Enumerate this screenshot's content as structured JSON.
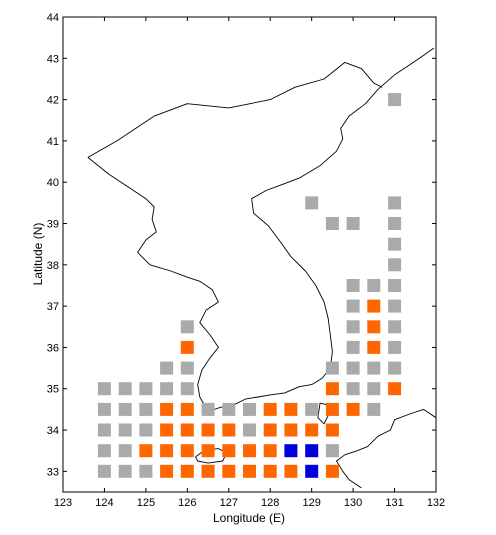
{
  "chart_data": {
    "type": "grid-map",
    "xlabel": "Longitude (E)",
    "ylabel": "Latitude (N)",
    "xlim": [
      123,
      132
    ],
    "ylim": [
      32.5,
      44
    ],
    "x_ticks": [
      "123",
      "124",
      "125",
      "126",
      "127",
      "128",
      "129",
      "130",
      "131",
      "132"
    ],
    "y_ticks": [
      "33",
      "34",
      "35",
      "36",
      "37",
      "38",
      "39",
      "40",
      "41",
      "42",
      "43",
      "44"
    ],
    "cell_size_deg": 0.5,
    "category_colors": {
      "gray": "#aaaaaa",
      "orange": "#ff6600",
      "blue": "#0000dd"
    },
    "cells": [
      {
        "lon": 131.0,
        "lat": 42.0,
        "cat": "gray"
      },
      {
        "lon": 129.0,
        "lat": 39.5,
        "cat": "gray"
      },
      {
        "lon": 131.0,
        "lat": 39.5,
        "cat": "gray"
      },
      {
        "lon": 129.5,
        "lat": 39.0,
        "cat": "gray"
      },
      {
        "lon": 130.0,
        "lat": 39.0,
        "cat": "gray"
      },
      {
        "lon": 131.0,
        "lat": 39.0,
        "cat": "gray"
      },
      {
        "lon": 131.0,
        "lat": 38.5,
        "cat": "gray"
      },
      {
        "lon": 131.0,
        "lat": 38.0,
        "cat": "gray"
      },
      {
        "lon": 130.0,
        "lat": 37.5,
        "cat": "gray"
      },
      {
        "lon": 130.5,
        "lat": 37.5,
        "cat": "gray"
      },
      {
        "lon": 131.0,
        "lat": 37.5,
        "cat": "gray"
      },
      {
        "lon": 130.0,
        "lat": 37.0,
        "cat": "gray"
      },
      {
        "lon": 130.5,
        "lat": 37.0,
        "cat": "orange"
      },
      {
        "lon": 131.0,
        "lat": 37.0,
        "cat": "gray"
      },
      {
        "lon": 126.0,
        "lat": 36.5,
        "cat": "gray"
      },
      {
        "lon": 130.0,
        "lat": 36.5,
        "cat": "gray"
      },
      {
        "lon": 130.5,
        "lat": 36.5,
        "cat": "orange"
      },
      {
        "lon": 131.0,
        "lat": 36.5,
        "cat": "gray"
      },
      {
        "lon": 126.0,
        "lat": 36.0,
        "cat": "orange"
      },
      {
        "lon": 130.0,
        "lat": 36.0,
        "cat": "gray"
      },
      {
        "lon": 130.5,
        "lat": 36.0,
        "cat": "orange"
      },
      {
        "lon": 131.0,
        "lat": 36.0,
        "cat": "gray"
      },
      {
        "lon": 125.5,
        "lat": 35.5,
        "cat": "gray"
      },
      {
        "lon": 126.0,
        "lat": 35.5,
        "cat": "gray"
      },
      {
        "lon": 129.5,
        "lat": 35.5,
        "cat": "gray"
      },
      {
        "lon": 130.0,
        "lat": 35.5,
        "cat": "gray"
      },
      {
        "lon": 130.5,
        "lat": 35.5,
        "cat": "gray"
      },
      {
        "lon": 131.0,
        "lat": 35.5,
        "cat": "gray"
      },
      {
        "lon": 124.0,
        "lat": 35.0,
        "cat": "gray"
      },
      {
        "lon": 124.5,
        "lat": 35.0,
        "cat": "gray"
      },
      {
        "lon": 125.0,
        "lat": 35.0,
        "cat": "gray"
      },
      {
        "lon": 125.5,
        "lat": 35.0,
        "cat": "gray"
      },
      {
        "lon": 126.0,
        "lat": 35.0,
        "cat": "gray"
      },
      {
        "lon": 129.5,
        "lat": 35.0,
        "cat": "orange"
      },
      {
        "lon": 130.0,
        "lat": 35.0,
        "cat": "gray"
      },
      {
        "lon": 130.5,
        "lat": 35.0,
        "cat": "gray"
      },
      {
        "lon": 131.0,
        "lat": 35.0,
        "cat": "orange"
      },
      {
        "lon": 124.0,
        "lat": 34.5,
        "cat": "gray"
      },
      {
        "lon": 124.5,
        "lat": 34.5,
        "cat": "gray"
      },
      {
        "lon": 125.0,
        "lat": 34.5,
        "cat": "gray"
      },
      {
        "lon": 125.5,
        "lat": 34.5,
        "cat": "orange"
      },
      {
        "lon": 126.0,
        "lat": 34.5,
        "cat": "orange"
      },
      {
        "lon": 126.5,
        "lat": 34.5,
        "cat": "gray"
      },
      {
        "lon": 127.0,
        "lat": 34.5,
        "cat": "gray"
      },
      {
        "lon": 127.5,
        "lat": 34.5,
        "cat": "gray"
      },
      {
        "lon": 128.0,
        "lat": 34.5,
        "cat": "orange"
      },
      {
        "lon": 128.5,
        "lat": 34.5,
        "cat": "orange"
      },
      {
        "lon": 129.0,
        "lat": 34.5,
        "cat": "gray"
      },
      {
        "lon": 129.5,
        "lat": 34.5,
        "cat": "orange"
      },
      {
        "lon": 130.0,
        "lat": 34.5,
        "cat": "orange"
      },
      {
        "lon": 130.5,
        "lat": 34.5,
        "cat": "gray"
      },
      {
        "lon": 124.0,
        "lat": 34.0,
        "cat": "gray"
      },
      {
        "lon": 124.5,
        "lat": 34.0,
        "cat": "gray"
      },
      {
        "lon": 125.0,
        "lat": 34.0,
        "cat": "gray"
      },
      {
        "lon": 125.5,
        "lat": 34.0,
        "cat": "orange"
      },
      {
        "lon": 126.0,
        "lat": 34.0,
        "cat": "orange"
      },
      {
        "lon": 126.5,
        "lat": 34.0,
        "cat": "orange"
      },
      {
        "lon": 127.0,
        "lat": 34.0,
        "cat": "orange"
      },
      {
        "lon": 127.5,
        "lat": 34.0,
        "cat": "gray"
      },
      {
        "lon": 128.0,
        "lat": 34.0,
        "cat": "orange"
      },
      {
        "lon": 128.5,
        "lat": 34.0,
        "cat": "orange"
      },
      {
        "lon": 129.0,
        "lat": 34.0,
        "cat": "orange"
      },
      {
        "lon": 129.5,
        "lat": 34.0,
        "cat": "orange"
      },
      {
        "lon": 124.0,
        "lat": 33.5,
        "cat": "gray"
      },
      {
        "lon": 124.5,
        "lat": 33.5,
        "cat": "gray"
      },
      {
        "lon": 125.0,
        "lat": 33.5,
        "cat": "orange"
      },
      {
        "lon": 125.5,
        "lat": 33.5,
        "cat": "orange"
      },
      {
        "lon": 126.0,
        "lat": 33.5,
        "cat": "orange"
      },
      {
        "lon": 126.5,
        "lat": 33.5,
        "cat": "orange"
      },
      {
        "lon": 127.0,
        "lat": 33.5,
        "cat": "orange"
      },
      {
        "lon": 127.5,
        "lat": 33.5,
        "cat": "orange"
      },
      {
        "lon": 128.0,
        "lat": 33.5,
        "cat": "orange"
      },
      {
        "lon": 128.5,
        "lat": 33.5,
        "cat": "blue"
      },
      {
        "lon": 129.0,
        "lat": 33.5,
        "cat": "blue"
      },
      {
        "lon": 129.5,
        "lat": 33.5,
        "cat": "gray"
      },
      {
        "lon": 124.0,
        "lat": 33.0,
        "cat": "gray"
      },
      {
        "lon": 124.5,
        "lat": 33.0,
        "cat": "gray"
      },
      {
        "lon": 125.0,
        "lat": 33.0,
        "cat": "gray"
      },
      {
        "lon": 125.5,
        "lat": 33.0,
        "cat": "orange"
      },
      {
        "lon": 126.0,
        "lat": 33.0,
        "cat": "orange"
      },
      {
        "lon": 126.5,
        "lat": 33.0,
        "cat": "orange"
      },
      {
        "lon": 127.0,
        "lat": 33.0,
        "cat": "orange"
      },
      {
        "lon": 127.5,
        "lat": 33.0,
        "cat": "orange"
      },
      {
        "lon": 128.0,
        "lat": 33.0,
        "cat": "orange"
      },
      {
        "lon": 128.5,
        "lat": 33.0,
        "cat": "orange"
      },
      {
        "lon": 129.0,
        "lat": 33.0,
        "cat": "blue"
      },
      {
        "lon": 129.5,
        "lat": 33.0,
        "cat": "orange"
      }
    ],
    "coastlines": [
      {
        "name": "korean-peninsula",
        "closed": false,
        "points": [
          [
            123.6,
            40.6
          ],
          [
            124.1,
            40.2
          ],
          [
            124.4,
            40.0
          ],
          [
            124.7,
            39.8
          ],
          [
            125.0,
            39.6
          ],
          [
            125.2,
            39.4
          ],
          [
            125.15,
            39.1
          ],
          [
            125.25,
            38.8
          ],
          [
            125.0,
            38.6
          ],
          [
            124.8,
            38.3
          ],
          [
            125.1,
            38.0
          ],
          [
            125.6,
            37.85
          ],
          [
            126.0,
            37.7
          ],
          [
            126.3,
            37.6
          ],
          [
            126.6,
            37.4
          ],
          [
            126.75,
            37.1
          ],
          [
            126.45,
            36.9
          ],
          [
            126.3,
            36.6
          ],
          [
            126.55,
            36.3
          ],
          [
            126.75,
            36.0
          ],
          [
            126.55,
            35.75
          ],
          [
            126.35,
            35.45
          ],
          [
            126.25,
            35.1
          ],
          [
            126.3,
            34.8
          ],
          [
            126.5,
            34.45
          ],
          [
            126.8,
            34.55
          ],
          [
            127.1,
            34.6
          ],
          [
            127.4,
            34.75
          ],
          [
            127.7,
            34.8
          ],
          [
            128.0,
            34.85
          ],
          [
            128.35,
            34.9
          ],
          [
            128.7,
            35.05
          ],
          [
            129.0,
            35.1
          ],
          [
            129.25,
            35.25
          ],
          [
            129.45,
            35.5
          ],
          [
            129.5,
            35.9
          ],
          [
            129.45,
            36.3
          ],
          [
            129.4,
            36.7
          ],
          [
            129.3,
            37.1
          ],
          [
            129.1,
            37.5
          ],
          [
            128.85,
            37.85
          ],
          [
            128.5,
            38.2
          ],
          [
            128.25,
            38.55
          ],
          [
            127.95,
            38.95
          ],
          [
            127.6,
            39.25
          ],
          [
            127.55,
            39.6
          ],
          [
            127.9,
            39.8
          ],
          [
            128.3,
            39.95
          ],
          [
            128.7,
            40.1
          ],
          [
            129.2,
            40.4
          ],
          [
            129.6,
            40.75
          ],
          [
            129.75,
            41.05
          ],
          [
            129.7,
            41.3
          ],
          [
            129.9,
            41.6
          ],
          [
            130.3,
            41.9
          ],
          [
            130.6,
            42.25
          ],
          [
            131.0,
            42.6
          ],
          [
            131.3,
            42.8
          ],
          [
            131.6,
            43.0
          ],
          [
            131.95,
            43.25
          ]
        ]
      },
      {
        "name": "manchuria-border",
        "closed": false,
        "points": [
          [
            123.6,
            40.6
          ],
          [
            124.3,
            41.0
          ],
          [
            125.2,
            41.6
          ],
          [
            126.0,
            41.9
          ],
          [
            127.0,
            41.8
          ],
          [
            128.0,
            42.0
          ],
          [
            128.6,
            42.3
          ],
          [
            129.3,
            42.5
          ],
          [
            129.8,
            42.9
          ],
          [
            130.2,
            42.75
          ],
          [
            130.5,
            42.4
          ],
          [
            130.7,
            42.3
          ]
        ]
      },
      {
        "name": "japan-coast",
        "closed": false,
        "points": [
          [
            132.0,
            34.3
          ],
          [
            131.7,
            34.5
          ],
          [
            131.4,
            34.4
          ],
          [
            131.0,
            34.25
          ],
          [
            130.9,
            34.0
          ],
          [
            130.6,
            33.85
          ],
          [
            130.35,
            33.6
          ],
          [
            130.1,
            33.5
          ],
          [
            129.8,
            33.4
          ],
          [
            129.6,
            33.25
          ],
          [
            129.75,
            33.0
          ],
          [
            129.9,
            32.8
          ],
          [
            130.2,
            32.6
          ]
        ]
      },
      {
        "name": "jeju-island",
        "closed": true,
        "points": [
          [
            126.2,
            33.35
          ],
          [
            126.4,
            33.5
          ],
          [
            126.75,
            33.55
          ],
          [
            126.95,
            33.45
          ],
          [
            126.85,
            33.25
          ],
          [
            126.5,
            33.2
          ],
          [
            126.25,
            33.25
          ]
        ]
      },
      {
        "name": "tsushima-island",
        "closed": true,
        "points": [
          [
            129.2,
            34.65
          ],
          [
            129.45,
            34.6
          ],
          [
            129.4,
            34.35
          ],
          [
            129.3,
            34.15
          ],
          [
            129.15,
            34.3
          ]
        ]
      },
      {
        "name": "ulleung-island",
        "closed": true,
        "points": [
          [
            130.85,
            37.5
          ],
          [
            130.95,
            37.55
          ],
          [
            130.93,
            37.45
          ]
        ]
      }
    ]
  }
}
